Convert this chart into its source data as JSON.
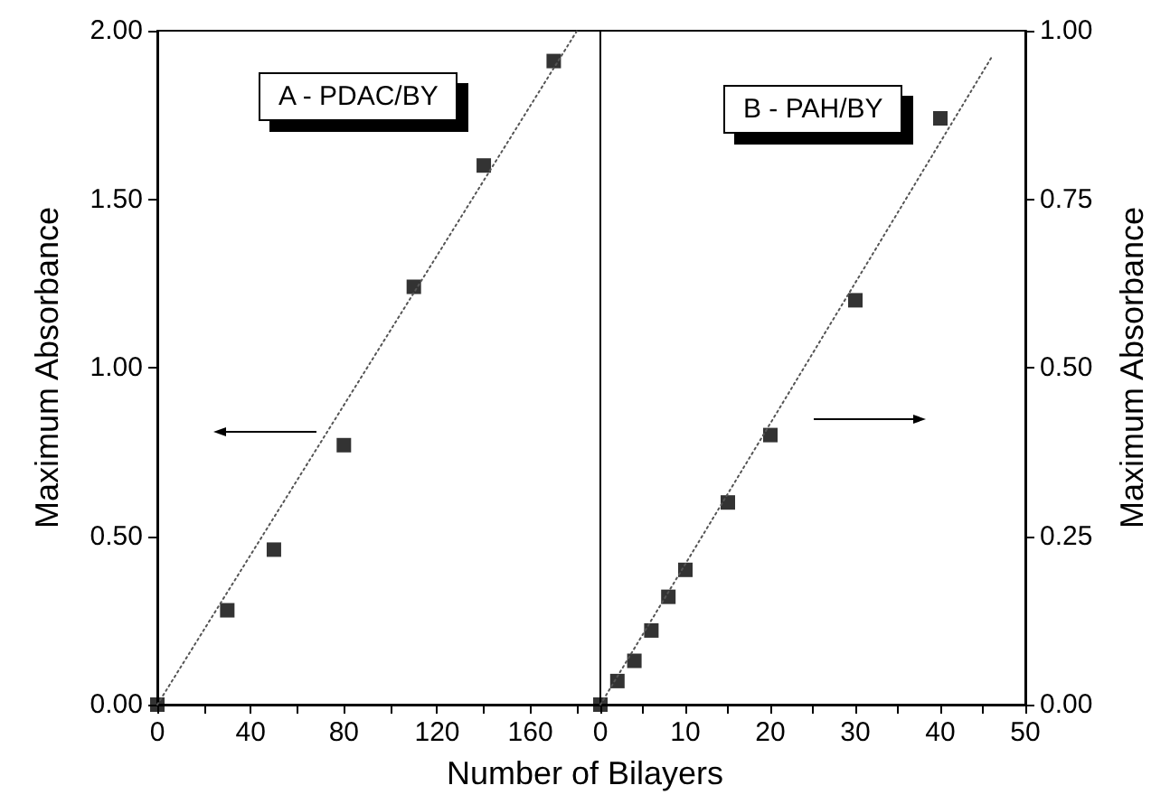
{
  "chart_data": [
    {
      "type": "scatter",
      "xlabel": "Number of Bilayers",
      "ylabel": "Maximum Absorbance",
      "annotations": [
        "A - PDAC/BY"
      ],
      "xlim": [
        0,
        190
      ],
      "xticks": [
        0,
        {
          "value": 20,
          "label": null
        },
        40,
        {
          "value": 60,
          "label": null
        },
        80,
        {
          "value": 100,
          "label": null
        },
        120,
        {
          "value": 140,
          "label": null
        },
        160,
        {
          "value": 180,
          "label": null
        }
      ],
      "ylim": [
        0,
        2.0
      ],
      "yticks": [
        {
          "value": 0,
          "label": "0.00"
        },
        {
          "value": 0.5,
          "label": "0.50"
        },
        {
          "value": 1.0,
          "label": "1.00"
        },
        {
          "value": 1.5,
          "label": "1.50"
        },
        {
          "value": 2.0,
          "label": "2.00"
        }
      ],
      "marker": "square",
      "series": [
        {
          "color": "#000000",
          "x": [
            0,
            30,
            50,
            80,
            110,
            140,
            170
          ],
          "values": [
            0,
            0.28,
            0.46,
            0.77,
            1.24,
            1.6,
            1.91
          ]
        },
        {
          "type": "line",
          "color": "#555555",
          "x": [
            0,
            180
          ],
          "values": [
            0,
            2.0
          ],
          "line_style": "dotted",
          "marker": "none"
        }
      ]
    },
    {
      "type": "scatter",
      "y2label": "Maximum Absorbance",
      "annotations": [
        "B - PAH/BY"
      ],
      "xlim": [
        0,
        50
      ],
      "xticks": [
        0,
        {
          "value": 5,
          "label": null
        },
        10,
        {
          "value": 15,
          "label": null
        },
        20,
        {
          "value": 25,
          "label": null
        },
        30,
        {
          "value": 35,
          "label": null
        },
        40,
        {
          "value": 45,
          "label": null
        },
        50
      ],
      "y2lim": [
        0,
        1.0
      ],
      "y2ticks": [
        {
          "value": 0,
          "label": "0.00"
        },
        {
          "value": 0.25,
          "label": "0.25"
        },
        {
          "value": 0.5,
          "label": "0.50"
        },
        {
          "value": 0.75,
          "label": "0.75"
        },
        {
          "value": 1.0,
          "label": "1.00"
        }
      ],
      "marker": "square",
      "series": [
        {
          "axis": "y2",
          "color": "#000000",
          "x": [
            0,
            2,
            4,
            6,
            8,
            10,
            15,
            20,
            30,
            40
          ],
          "values": [
            0,
            0.035,
            0.065,
            0.11,
            0.16,
            0.2,
            0.3,
            0.4,
            0.6,
            0.87
          ]
        },
        {
          "type": "line",
          "axis": "y2",
          "color": "#555555",
          "x": [
            0,
            46
          ],
          "values": [
            0,
            0.96
          ],
          "line_style": "dotted",
          "marker": "none"
        }
      ]
    }
  ]
}
